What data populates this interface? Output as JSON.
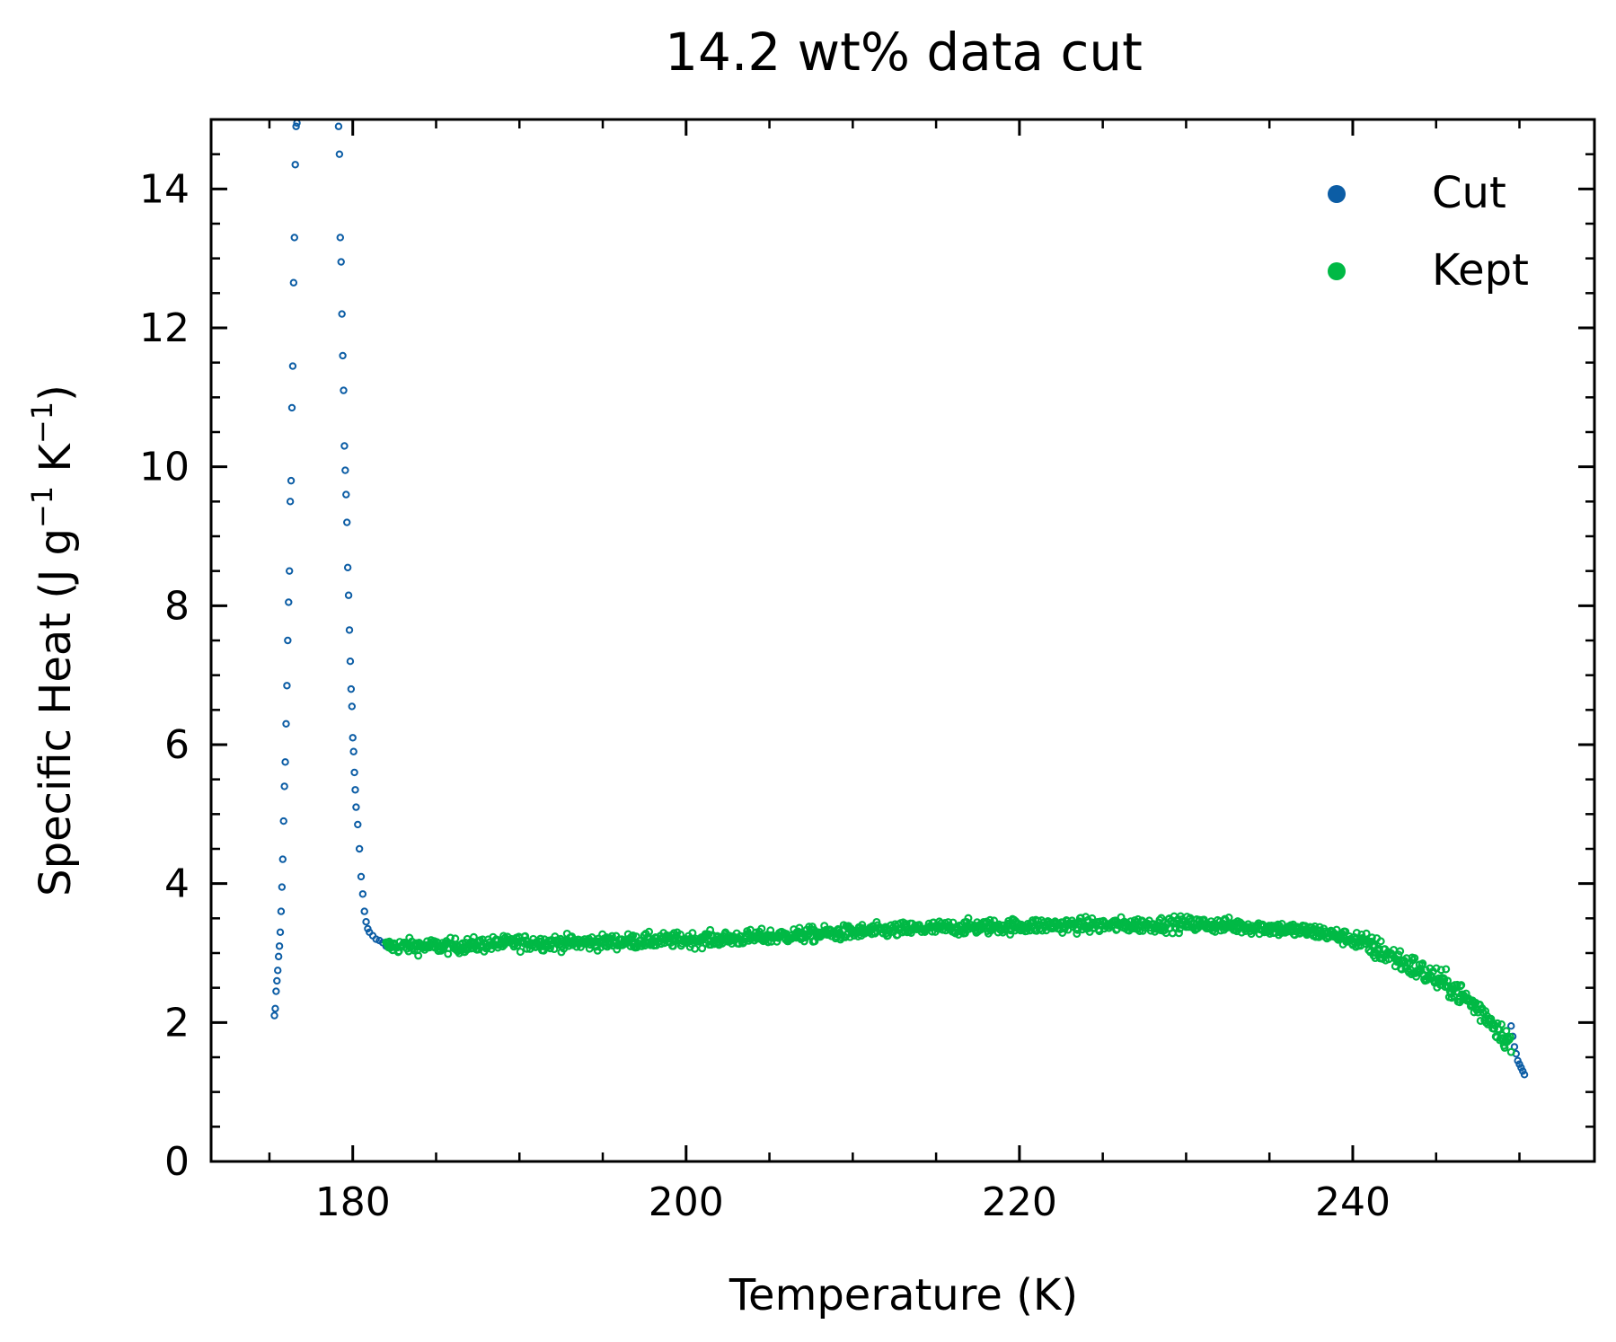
{
  "chart_data": {
    "type": "scatter",
    "title": "14.2 wt% data cut",
    "xlabel": "Temperature (K)",
    "ylabel_parts": {
      "prefix": "Specific Heat (J g",
      "sup1": "−1",
      "mid": " K",
      "sup2": "−1",
      "suffix": ")"
    },
    "xlim": [
      171.5,
      254.5
    ],
    "ylim": [
      0,
      15
    ],
    "xticks": [
      180,
      200,
      220,
      240
    ],
    "xtick_labels": [
      "180",
      "200",
      "220",
      "240"
    ],
    "xminor_step": 5,
    "yticks": [
      0,
      2,
      4,
      6,
      8,
      10,
      12,
      14
    ],
    "ytick_labels": [
      "0",
      "2",
      "4",
      "6",
      "8",
      "10",
      "12",
      "14"
    ],
    "yminor_step": 0.5,
    "grid": false,
    "legend": "top-right",
    "marker": "open-circle",
    "series": [
      {
        "name": "Cut",
        "color": "#0c5da5",
        "x": [
          175.3,
          175.35,
          175.4,
          175.45,
          175.5,
          175.55,
          175.6,
          175.65,
          175.7,
          175.75,
          175.8,
          175.85,
          175.9,
          175.95,
          176.0,
          176.05,
          176.1,
          176.15,
          176.2,
          176.25,
          176.3,
          176.35,
          176.4,
          176.45,
          176.5,
          176.55,
          176.6,
          176.65,
          176.7,
          176.8,
          176.9,
          176.95,
          177.0,
          179.1,
          179.15,
          179.2,
          179.25,
          179.3,
          179.35,
          179.4,
          179.45,
          179.5,
          179.55,
          179.6,
          179.65,
          179.7,
          179.75,
          179.8,
          179.85,
          179.9,
          179.95,
          180.0,
          180.05,
          180.1,
          180.15,
          180.2,
          180.3,
          180.4,
          180.5,
          180.6,
          180.7,
          180.8,
          180.9,
          181.0,
          181.2,
          181.4,
          181.6,
          181.8,
          182.0,
          249.5,
          249.6,
          249.7,
          249.8,
          249.9,
          250.0,
          250.1,
          250.2,
          250.3
        ],
        "y": [
          2.1,
          2.2,
          2.45,
          2.6,
          2.75,
          2.95,
          3.1,
          3.3,
          3.6,
          3.95,
          4.35,
          4.9,
          5.4,
          5.75,
          6.3,
          6.85,
          7.5,
          8.05,
          8.5,
          9.5,
          9.8,
          10.85,
          11.45,
          12.65,
          13.3,
          14.35,
          14.9,
          14.95,
          15.0,
          15.0,
          15.0,
          15.0,
          15.0,
          15.0,
          14.9,
          14.5,
          13.3,
          12.95,
          12.2,
          11.6,
          11.1,
          10.3,
          9.95,
          9.6,
          9.2,
          8.55,
          8.15,
          7.65,
          7.2,
          6.8,
          6.55,
          6.1,
          5.9,
          5.6,
          5.35,
          5.1,
          4.85,
          4.5,
          4.1,
          3.85,
          3.6,
          3.45,
          3.35,
          3.3,
          3.25,
          3.2,
          3.18,
          3.15,
          3.1,
          1.95,
          1.8,
          1.65,
          1.55,
          1.45,
          1.4,
          1.35,
          1.3,
          1.25
        ]
      },
      {
        "name": "Kept",
        "color": "#00b945",
        "trend_x": [
          182,
          186,
          190,
          194,
          198,
          202,
          206,
          210,
          214,
          218,
          222,
          226,
          230,
          234,
          238,
          240,
          242,
          244,
          246,
          248,
          249.5
        ],
        "trend_y": [
          3.1,
          3.1,
          3.15,
          3.15,
          3.18,
          3.2,
          3.25,
          3.3,
          3.35,
          3.38,
          3.4,
          3.4,
          3.42,
          3.38,
          3.3,
          3.2,
          3.0,
          2.75,
          2.5,
          2.1,
          1.7
        ],
        "x_range": [
          182,
          249.5
        ],
        "noise": 0.09,
        "point_count": 1400
      }
    ]
  }
}
